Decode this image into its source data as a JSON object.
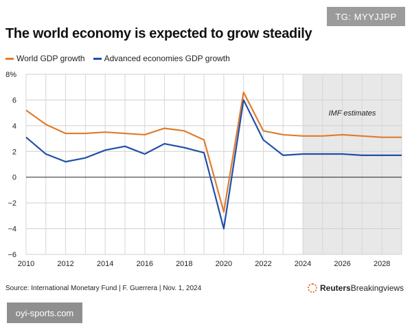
{
  "tag_badge": "TG: MYYJJPP",
  "site_badge": "oyi-sports.com",
  "source": "Source: International Monetary Fund | F. Guerrera | Nov. 1, 2024",
  "brand": {
    "bold": "Reuters",
    "rest": "Breakingviews"
  },
  "colors": {
    "world": "#e07b2c",
    "advanced": "#1f4fa8",
    "estimate_band": "#e8e8e8"
  },
  "chart_data": {
    "type": "line",
    "title": "The world economy is expected to grow steadily",
    "xlabel": "",
    "ylabel": "",
    "x": [
      2010,
      2011,
      2012,
      2013,
      2014,
      2015,
      2016,
      2017,
      2018,
      2019,
      2020,
      2021,
      2022,
      2023,
      2024,
      2025,
      2026,
      2027,
      2028,
      2029
    ],
    "series": [
      {
        "name": "World GDP growth",
        "values": [
          5.2,
          4.1,
          3.4,
          3.4,
          3.5,
          3.4,
          3.3,
          3.8,
          3.6,
          2.9,
          -2.7,
          6.6,
          3.6,
          3.3,
          3.2,
          3.2,
          3.3,
          3.2,
          3.1,
          3.1
        ]
      },
      {
        "name": "Advanced economies GDP growth",
        "values": [
          3.1,
          1.8,
          1.2,
          1.5,
          2.1,
          2.4,
          1.8,
          2.6,
          2.3,
          1.9,
          -4.0,
          6.0,
          2.9,
          1.7,
          1.8,
          1.8,
          1.8,
          1.7,
          1.7,
          1.7
        ]
      }
    ],
    "ylim": [
      -6,
      8
    ],
    "xlim": [
      2010,
      2029
    ],
    "y_ticks": [
      "−6",
      "−4",
      "−2",
      "0",
      "2",
      "4",
      "6",
      "8%"
    ],
    "x_ticks": [
      "2010",
      "2012",
      "2014",
      "2016",
      "2018",
      "2020",
      "2022",
      "2024",
      "2026",
      "2028"
    ],
    "estimate_range": [
      2024,
      2029
    ],
    "annotation": "IMF estimates",
    "legend": "top-left",
    "grid": true
  }
}
